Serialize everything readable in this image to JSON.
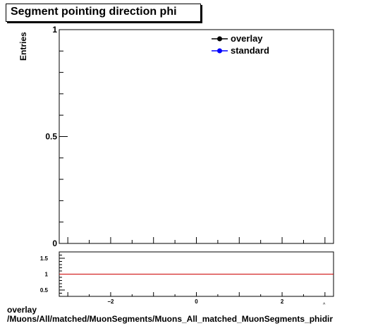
{
  "title": "Segment pointing direction phi",
  "chart_data": [
    {
      "type": "line",
      "ylabel": "Entries",
      "xlim": [
        -3.2,
        3.2
      ],
      "ylim": [
        0,
        1
      ],
      "y_ticks": [
        {
          "value": 0,
          "label": "0"
        },
        {
          "value": 0.5,
          "label": "0.5"
        },
        {
          "value": 1,
          "label": "1"
        }
      ],
      "series": [
        {
          "name": "overlay",
          "color": "#000000",
          "values": []
        },
        {
          "name": "standard",
          "color": "#0000ff",
          "values": []
        }
      ],
      "legend_position": "top-right"
    },
    {
      "type": "line",
      "xlim": [
        -3.2,
        3.2
      ],
      "ylim": [
        0.3,
        1.7
      ],
      "x_ticks": [
        {
          "value": -2,
          "label": "−2"
        },
        {
          "value": 0,
          "label": "0"
        },
        {
          "value": 2,
          "label": "2"
        }
      ],
      "y_ticks": [
        {
          "value": 0.5,
          "label": "0.5"
        },
        {
          "value": 1,
          "label": "1"
        },
        {
          "value": 1.5,
          "label": "1.5"
        }
      ],
      "reference_line": {
        "y": 1,
        "color": "#cc0000"
      }
    }
  ],
  "footer": {
    "line1": "overlay",
    "line2": "/Muons/All/matched/MuonSegments/Muons_All_matched_MuonSegments_phidir"
  }
}
